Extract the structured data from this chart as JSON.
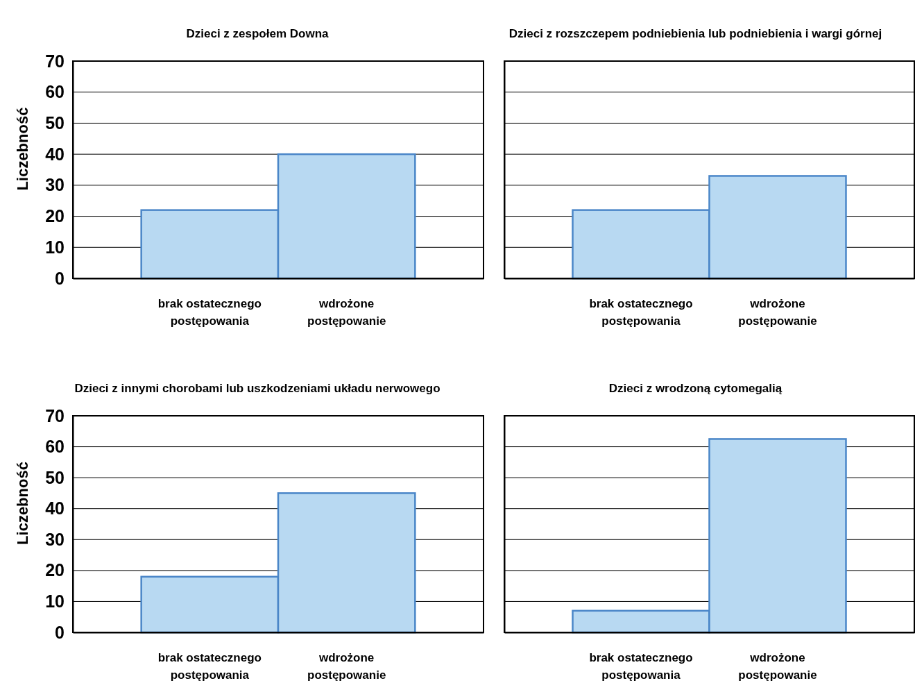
{
  "chart_data": [
    {
      "type": "bar",
      "title": "Dzieci z zespołem Downa",
      "ylabel": "Liczebność",
      "categories": [
        "brak ostatecznego postępowania",
        "wdrożone postępowanie"
      ],
      "values": [
        22,
        40
      ],
      "color": "#b8d9f2",
      "ylim": [
        0,
        70
      ],
      "yticks": [
        0,
        10,
        20,
        30,
        40,
        50,
        60,
        70
      ],
      "grid": "y"
    },
    {
      "type": "bar",
      "title": "Dzieci z rozszczepem podniebienia lub podniebienia i wargi górnej",
      "categories": [
        "brak ostatecznego postępowania",
        "wdrożone postępowanie"
      ],
      "values": [
        22,
        33
      ],
      "color": "#b8d9f2",
      "ylim": [
        0,
        70
      ],
      "yticks": [
        0,
        10,
        20,
        30,
        40,
        50,
        60,
        70
      ],
      "grid": "y",
      "tick_labels": "x"
    },
    {
      "type": "bar",
      "title": "Dzieci z innymi chorobami lub uszkodzeniami układu nerwowego",
      "ylabel": "Liczebność",
      "categories": [
        "brak ostatecznego postępowania",
        "wdrożone postępowanie"
      ],
      "values": [
        18,
        45
      ],
      "color": "#b8d9f2",
      "ylim": [
        0,
        70
      ],
      "yticks": [
        0,
        10,
        20,
        30,
        40,
        50,
        60,
        70
      ],
      "grid": "y"
    },
    {
      "type": "bar",
      "title": "Dzieci z wrodzoną cytomegalią",
      "categories": [
        "brak ostatecznego postępowania",
        "wdrożone postępowanie"
      ],
      "values": [
        7,
        62.5
      ],
      "color": "#b8d9f2",
      "ylim": [
        0,
        70
      ],
      "yticks": [
        0,
        10,
        20,
        30,
        40,
        50,
        60,
        70
      ],
      "grid": "y",
      "tick_labels": "x"
    }
  ]
}
